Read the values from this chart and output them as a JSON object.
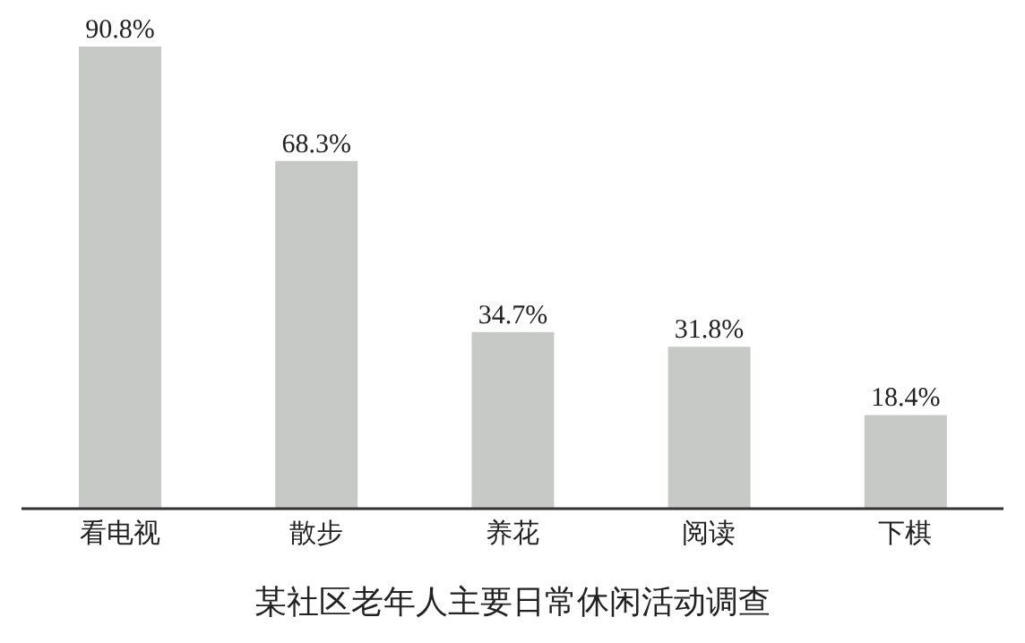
{
  "chart_data": {
    "type": "bar",
    "title": "某社区老年人主要日常休闲活动调查",
    "categories": [
      "看电视",
      "散步",
      "养花",
      "阅读",
      "下棋"
    ],
    "values": [
      90.8,
      68.3,
      34.7,
      31.8,
      18.4
    ],
    "value_labels": [
      "90.8%",
      "68.3%",
      "34.7%",
      "31.8%",
      "18.4%"
    ],
    "color": "#c6c9c6",
    "grid": false,
    "legend": false
  }
}
